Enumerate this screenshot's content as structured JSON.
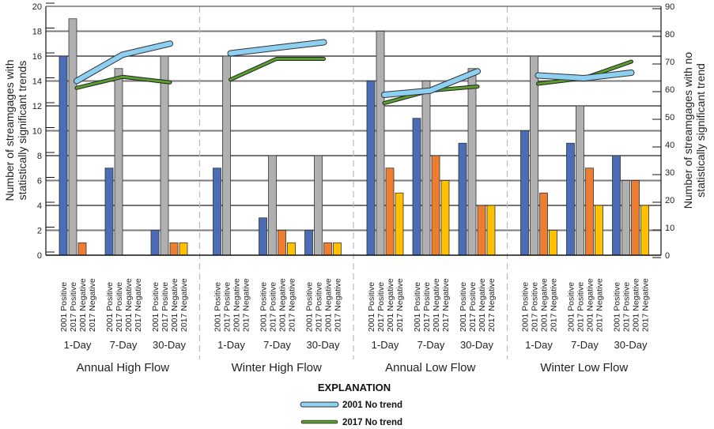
{
  "chart_data": {
    "type": "bar",
    "title": "",
    "ylabel_left": [
      "Number of streamgages with",
      "statistically significant trends"
    ],
    "ylabel_right": [
      "Number of streamgages with no",
      "statistically significant trend"
    ],
    "ylim_left": [
      0,
      20
    ],
    "ylim_right": [
      0,
      90
    ],
    "yticks_left": [
      0,
      2,
      4,
      6,
      8,
      10,
      12,
      14,
      16,
      18,
      20
    ],
    "yticks_right": [
      0,
      10,
      20,
      30,
      40,
      50,
      60,
      70,
      80,
      90
    ],
    "grid": true,
    "bar_series": [
      {
        "name": "2001 Positive",
        "color": "#4a6db5"
      },
      {
        "name": "2017 Positive",
        "color": "#b0b0b0"
      },
      {
        "name": "2001 Negative",
        "color": "#ed7d31"
      },
      {
        "name": "2017 Negative",
        "color": "#ffc000"
      }
    ],
    "durations": [
      "1-Day",
      "7-Day",
      "30-Day"
    ],
    "groups": [
      {
        "name": "Annual High Flow",
        "bars": [
          [
            16,
            19,
            1,
            0
          ],
          [
            7,
            15,
            0,
            0
          ],
          [
            2,
            16,
            1,
            1
          ]
        ],
        "no_trend_2001": [
          63,
          72.5,
          76.5
        ],
        "no_trend_2017": [
          60.5,
          64.5,
          62.5
        ]
      },
      {
        "name": "Winter High Flow",
        "bars": [
          [
            7,
            16,
            0,
            0
          ],
          [
            3,
            8,
            2,
            1
          ],
          [
            2,
            8,
            1,
            1
          ]
        ],
        "no_trend_2001": [
          73,
          75,
          77
        ],
        "no_trend_2017": [
          63.5,
          71,
          71
        ]
      },
      {
        "name": "Annual Low Flow",
        "bars": [
          [
            14,
            18,
            7,
            5
          ],
          [
            11,
            14,
            8,
            6
          ],
          [
            9,
            15,
            4,
            4
          ]
        ],
        "no_trend_2001": [
          58,
          59.5,
          66.5
        ],
        "no_trend_2017": [
          55,
          59.5,
          61
        ]
      },
      {
        "name": "Winter Low Flow",
        "bars": [
          [
            10,
            16,
            5,
            2
          ],
          [
            9,
            12,
            7,
            4
          ],
          [
            8,
            6,
            6,
            4
          ]
        ],
        "no_trend_2001": [
          65,
          64,
          66
        ],
        "no_trend_2017": [
          62,
          64,
          70
        ]
      }
    ],
    "line_series": [
      {
        "name": "2001 No trend",
        "key": "no_trend_2001",
        "color": "#8dd0f2",
        "axis": "right"
      },
      {
        "name": "2017 No trend",
        "key": "no_trend_2017",
        "color": "#5a9e2f",
        "axis": "right"
      }
    ],
    "legend": {
      "title": "EXPLANATION",
      "placement": "bottom-center"
    }
  }
}
